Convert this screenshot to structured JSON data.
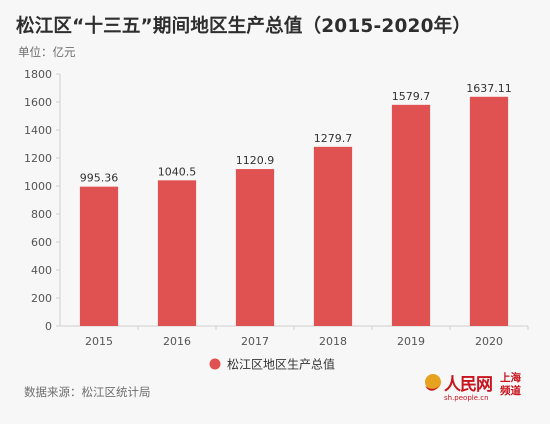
{
  "header": {
    "title": "松江区“十三五”期间地区生产总值（2015-2020年）",
    "unit": "单位：亿元"
  },
  "footer": {
    "source": "数据来源：松江区统计局"
  },
  "logo": {
    "name": "人民网",
    "url": "sh.people.cn",
    "city": "上海频道"
  },
  "colors": {
    "bar": "#e05252",
    "axis": "#cfcfcf",
    "grid": "#e4e4e4"
  },
  "chart_data": {
    "type": "bar",
    "title": "松江区“十三五”期间地区生产总值（2015-2020年）",
    "ylabel": "单位：亿元",
    "categories": [
      "2015",
      "2016",
      "2017",
      "2018",
      "2019",
      "2020"
    ],
    "series": [
      {
        "name": "松江区地区生产总值",
        "values": [
          995.36,
          1040.5,
          1120.9,
          1279.7,
          1579.7,
          1637.11
        ]
      }
    ],
    "data_labels": [
      "995.36",
      "1040.5",
      "1120.9",
      "1279.7",
      "1579.7",
      "1637.11"
    ],
    "ylim": [
      0,
      1800
    ],
    "yticks": [
      0,
      200,
      400,
      600,
      800,
      1000,
      1200,
      1400,
      1600,
      1800
    ],
    "grid": false,
    "legend": "bottom-center"
  }
}
